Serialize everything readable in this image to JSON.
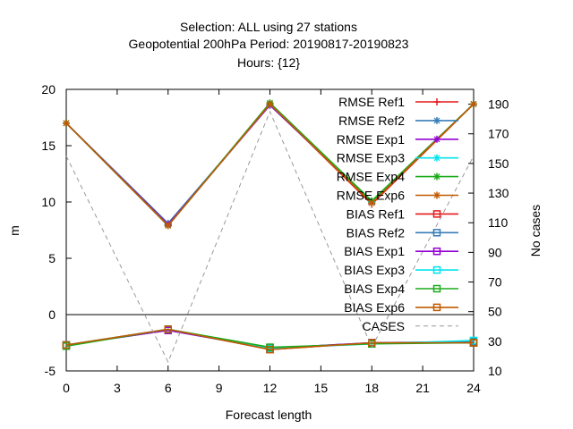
{
  "chart_data": {
    "type": "line",
    "title_lines": [
      "Selection: ALL using    27 stations",
      "Geopotential 200hPa   Period: 20190817-20190823",
      "Hours: {12}"
    ],
    "xlabel": "Forecast length",
    "ylabel": "m",
    "y2label": "No cases",
    "x": [
      0,
      6,
      12,
      18,
      24
    ],
    "xlim": [
      0,
      24
    ],
    "ylim": [
      -5,
      20
    ],
    "y2lim": [
      10,
      200
    ],
    "xticks": [
      0,
      3,
      6,
      9,
      12,
      15,
      18,
      21,
      24
    ],
    "yticks": [
      -5,
      0,
      5,
      10,
      15,
      20
    ],
    "y2ticks": [
      10,
      30,
      50,
      70,
      90,
      110,
      130,
      150,
      170,
      190
    ],
    "legend_position": "top-right inside",
    "series": [
      {
        "name": "RMSE Ref1",
        "color": "#e41a1c",
        "marker": "plus",
        "axis": "y",
        "values": [
          17.0,
          7.9,
          18.7,
          9.8,
          18.7
        ]
      },
      {
        "name": "RMSE Ref2",
        "color": "#377eb8",
        "marker": "star",
        "axis": "y",
        "values": [
          17.0,
          8.1,
          18.6,
          10.0,
          18.7
        ]
      },
      {
        "name": "RMSE Exp1",
        "color": "#9400d3",
        "marker": "star",
        "axis": "y",
        "values": [
          17.0,
          8.0,
          18.6,
          10.0,
          18.7
        ]
      },
      {
        "name": "RMSE Exp3",
        "color": "#00e5ee",
        "marker": "star",
        "axis": "y",
        "values": [
          17.0,
          7.9,
          18.7,
          10.0,
          18.7
        ]
      },
      {
        "name": "RMSE Exp4",
        "color": "#1aab1a",
        "marker": "star",
        "axis": "y",
        "values": [
          17.0,
          7.9,
          18.8,
          10.1,
          18.7
        ]
      },
      {
        "name": "RMSE Exp6",
        "color": "#c05a00",
        "marker": "star",
        "axis": "y",
        "values": [
          17.0,
          7.9,
          18.7,
          9.9,
          18.7
        ]
      },
      {
        "name": "BIAS Ref1",
        "color": "#e41a1c",
        "marker": "square",
        "axis": "y",
        "values": [
          -2.7,
          -1.3,
          -3.1,
          -2.5,
          -2.5
        ]
      },
      {
        "name": "BIAS Ref2",
        "color": "#377eb8",
        "marker": "square",
        "axis": "y",
        "values": [
          -2.7,
          -1.4,
          -3.0,
          -2.5,
          -2.4
        ]
      },
      {
        "name": "BIAS Exp1",
        "color": "#9400d3",
        "marker": "square",
        "axis": "y",
        "values": [
          -2.7,
          -1.4,
          -3.0,
          -2.5,
          -2.5
        ]
      },
      {
        "name": "BIAS Exp3",
        "color": "#00e5ee",
        "marker": "square",
        "axis": "y",
        "values": [
          -2.7,
          -1.3,
          -3.0,
          -2.6,
          -2.3
        ]
      },
      {
        "name": "BIAS Exp4",
        "color": "#1aab1a",
        "marker": "square",
        "axis": "y",
        "values": [
          -2.8,
          -1.3,
          -2.9,
          -2.6,
          -2.5
        ]
      },
      {
        "name": "BIAS Exp6",
        "color": "#c05a00",
        "marker": "square",
        "axis": "y",
        "values": [
          -2.7,
          -1.3,
          -3.1,
          -2.5,
          -2.5
        ]
      },
      {
        "name": "CASES",
        "color": "#999999",
        "marker": "none",
        "dashed": true,
        "axis": "y2",
        "values": [
          155,
          16,
          185,
          26,
          155
        ]
      }
    ]
  }
}
